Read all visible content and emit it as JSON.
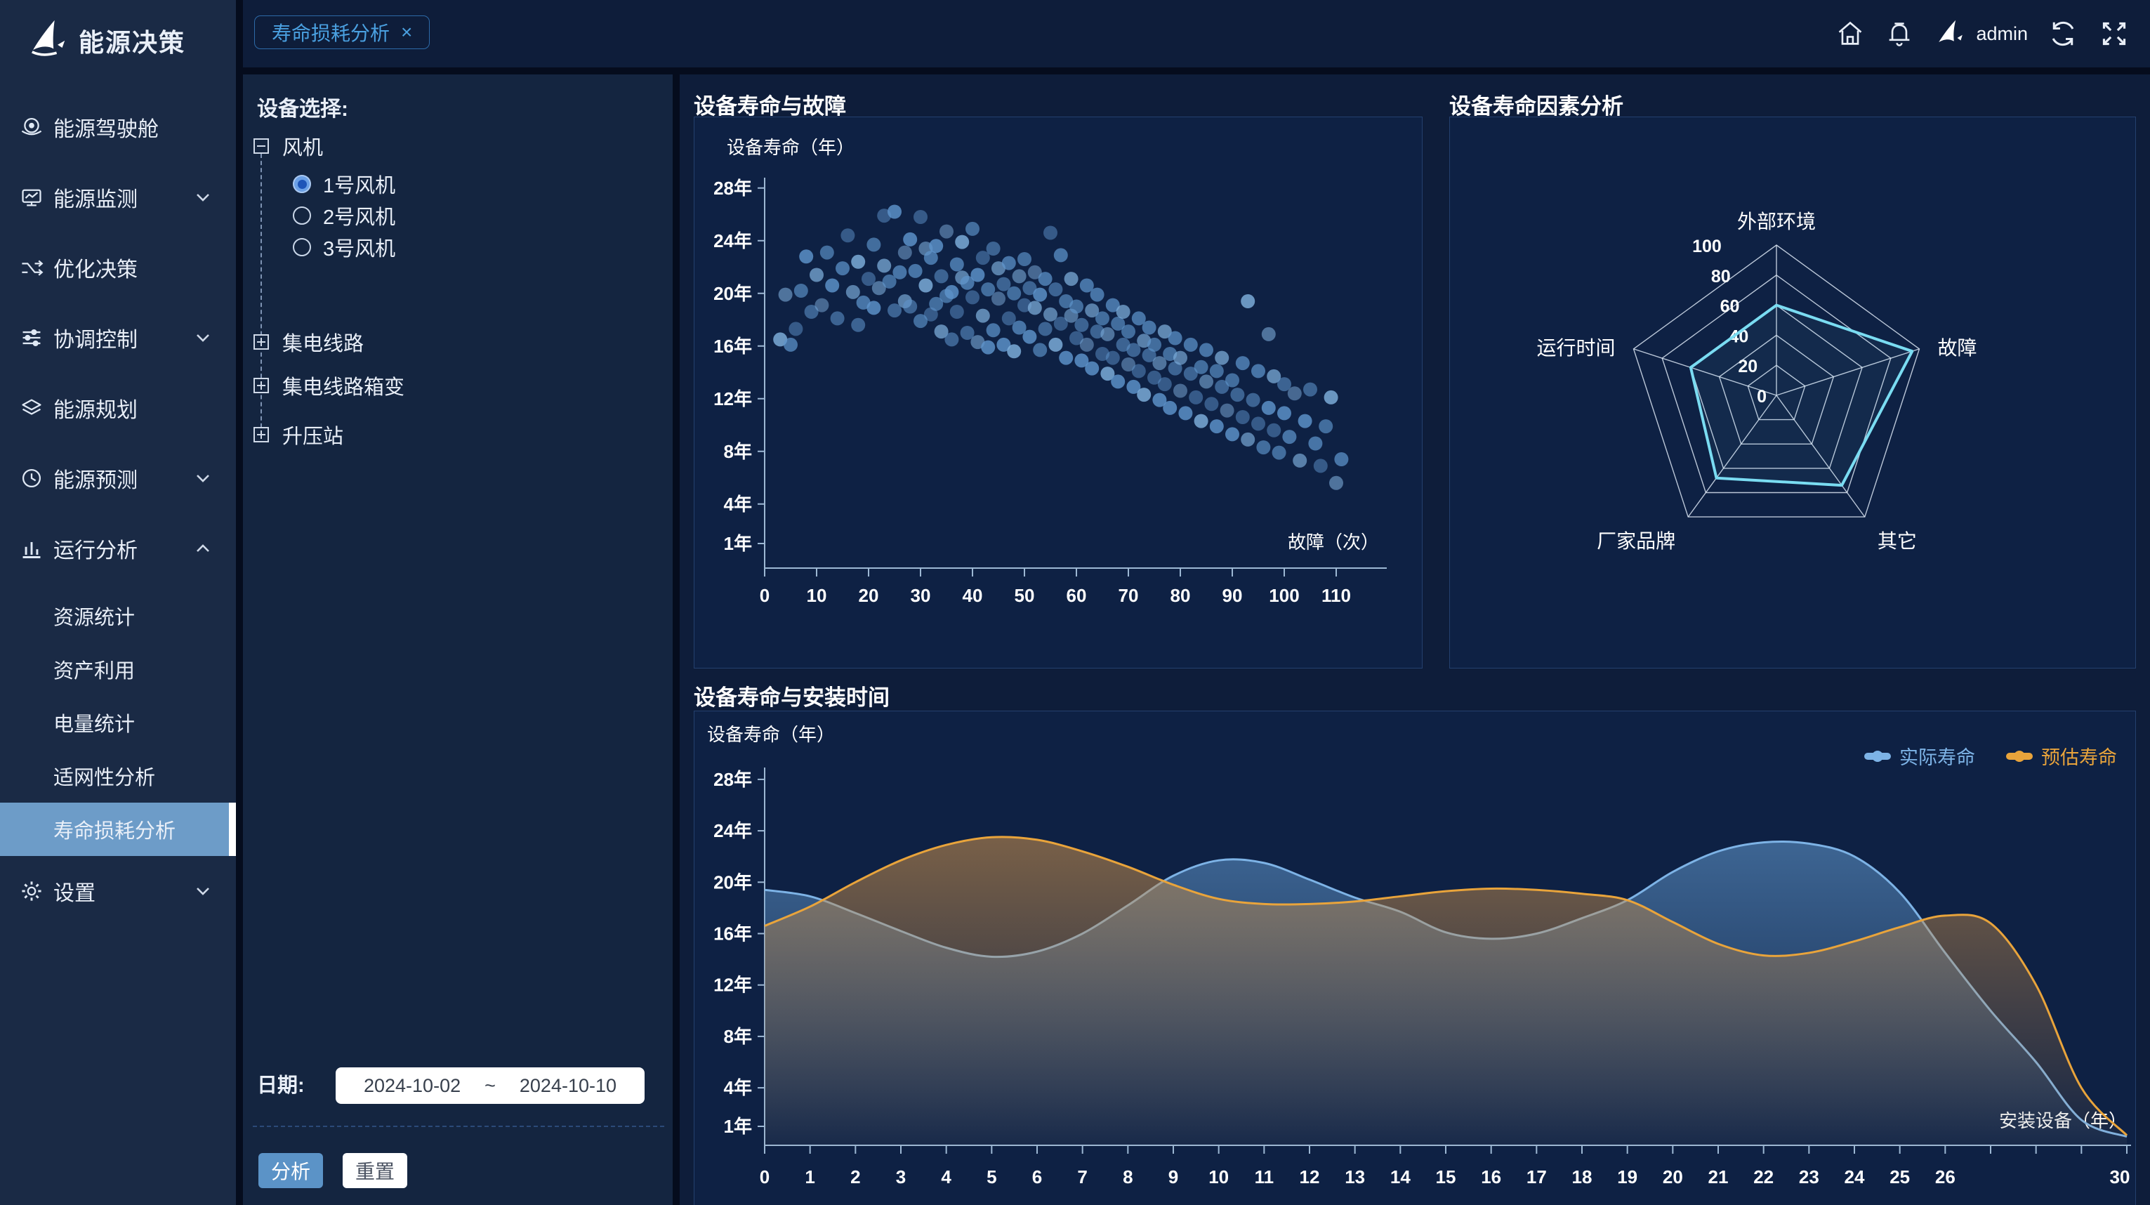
{
  "app_title": "能源决策",
  "topbar": {
    "tab_label": "寿命损耗分析",
    "tab_close": "×",
    "username": "admin",
    "icons": [
      "home-icon",
      "bell-icon",
      "brand-avatar-icon",
      "refresh-icon",
      "fullscreen-icon"
    ]
  },
  "sidebar": {
    "logo_icon": "sail-logo-icon",
    "logo_text": "能源决策",
    "items": [
      {
        "id": "cockpit",
        "label": "能源驾驶舱",
        "icon": "cockpit-icon",
        "chevron": null
      },
      {
        "id": "monitor",
        "label": "能源监测",
        "icon": "monitor-icon",
        "chevron": "down"
      },
      {
        "id": "optimize",
        "label": "优化决策",
        "icon": "decision-icon",
        "chevron": null
      },
      {
        "id": "control",
        "label": "协调控制",
        "icon": "sliders-icon",
        "chevron": "down"
      },
      {
        "id": "planning",
        "label": "能源规划",
        "icon": "layers-icon",
        "chevron": null
      },
      {
        "id": "forecast",
        "label": "能源预测",
        "icon": "clock-icon",
        "chevron": "down"
      },
      {
        "id": "analysis",
        "label": "运行分析",
        "icon": "barchart-icon",
        "chevron": "up",
        "expanded": true,
        "children": [
          {
            "id": "resource-stats",
            "label": "资源统计",
            "active": false
          },
          {
            "id": "asset-usage",
            "label": "资产利用",
            "active": false
          },
          {
            "id": "power-stats",
            "label": "电量统计",
            "active": false
          },
          {
            "id": "grid-fit",
            "label": "适网性分析",
            "active": false
          },
          {
            "id": "life-loss",
            "label": "寿命损耗分析",
            "active": true
          }
        ]
      },
      {
        "id": "settings",
        "label": "设置",
        "icon": "gear-icon",
        "chevron": "down"
      }
    ]
  },
  "device_panel": {
    "title": "设备选择:",
    "tree": [
      {
        "id": "fan",
        "label": "风机",
        "expander": "minus",
        "options": [
          {
            "label": "1号风机",
            "selected": true
          },
          {
            "label": "2号风机",
            "selected": false
          },
          {
            "label": "3号风机",
            "selected": false
          }
        ]
      },
      {
        "id": "collector-line",
        "label": "集电线路",
        "expander": "plus"
      },
      {
        "id": "collector-box",
        "label": "集电线路箱变",
        "expander": "plus"
      },
      {
        "id": "booster-station",
        "label": "升压站",
        "expander": "plus"
      }
    ],
    "date_label": "日期:",
    "date_start": "2024-10-02",
    "date_separator": "~",
    "date_end": "2024-10-10",
    "analyze_label": "分析",
    "reset_label": "重置"
  },
  "colors": {
    "accent_blue": "#4aa0e0",
    "active_item_bg": "#6d9cc8",
    "axis_line": "#9db8d4",
    "scatter_point": "#5e94cc",
    "scatter_point_light": "#7fb0dd",
    "radar_line": "#7adcf2",
    "series_actual": "#7db3e6",
    "series_estimate": "#e9a43b"
  },
  "chart_data": [
    {
      "type": "scatter",
      "title": "设备寿命与故障",
      "ylabel": "设备寿命（年）",
      "xlabel": "故障（次）",
      "y_tick_labels": [
        "1年",
        "4年",
        "8年",
        "12年",
        "16年",
        "20年",
        "24年",
        "28年"
      ],
      "y_tick_values": [
        1,
        4,
        8,
        12,
        16,
        20,
        24,
        28
      ],
      "x_ticks": [
        0,
        10,
        20,
        30,
        40,
        50,
        60,
        70,
        80,
        90,
        100,
        110
      ],
      "xlim": [
        0,
        120
      ],
      "ylim": [
        0,
        29.5
      ],
      "grid": false,
      "points": [
        [
          3,
          16.5
        ],
        [
          4,
          19.9
        ],
        [
          5,
          16.1
        ],
        [
          6,
          17.3
        ],
        [
          7,
          20.2
        ],
        [
          8,
          22.8
        ],
        [
          9,
          18.6
        ],
        [
          10,
          21.4
        ],
        [
          11,
          19.1
        ],
        [
          12,
          23.1
        ],
        [
          13,
          20.6
        ],
        [
          14,
          18.1
        ],
        [
          15,
          21.9
        ],
        [
          16,
          24.4
        ],
        [
          17,
          20.1
        ],
        [
          18,
          22.4
        ],
        [
          18,
          17.6
        ],
        [
          19,
          19.3
        ],
        [
          20,
          21.1
        ],
        [
          21,
          23.7
        ],
        [
          21,
          18.9
        ],
        [
          22,
          20.4
        ],
        [
          23,
          22.1
        ],
        [
          23,
          25.9
        ],
        [
          24,
          20.9
        ],
        [
          25,
          26.2
        ],
        [
          25,
          18.7
        ],
        [
          26,
          21.6
        ],
        [
          27,
          23.1
        ],
        [
          27,
          19.4
        ],
        [
          28,
          24.1
        ],
        [
          28,
          19.0
        ],
        [
          29,
          21.7
        ],
        [
          30,
          25.8
        ],
        [
          30,
          17.9
        ],
        [
          31,
          20.6
        ],
        [
          31,
          23.4
        ],
        [
          32,
          22.7
        ],
        [
          32,
          18.4
        ],
        [
          33,
          19.2
        ],
        [
          33,
          23.6
        ],
        [
          34,
          21.3
        ],
        [
          34,
          17.1
        ],
        [
          35,
          24.7
        ],
        [
          35,
          19.8
        ],
        [
          36,
          20.1
        ],
        [
          36,
          16.5
        ],
        [
          37,
          22.2
        ],
        [
          37,
          18.6
        ],
        [
          38,
          21.2
        ],
        [
          38,
          23.9
        ],
        [
          39,
          17.0
        ],
        [
          39,
          20.8
        ],
        [
          40,
          19.7
        ],
        [
          40,
          24.9
        ],
        [
          41,
          21.4
        ],
        [
          41,
          16.3
        ],
        [
          42,
          18.3
        ],
        [
          42,
          22.7
        ],
        [
          43,
          20.3
        ],
        [
          43,
          15.9
        ],
        [
          44,
          23.4
        ],
        [
          44,
          17.2
        ],
        [
          45,
          19.6
        ],
        [
          45,
          21.9
        ],
        [
          46,
          16.1
        ],
        [
          46,
          20.7
        ],
        [
          47,
          22.3
        ],
        [
          47,
          18.1
        ],
        [
          48,
          20.0
        ],
        [
          48,
          15.6
        ],
        [
          49,
          21.3
        ],
        [
          49,
          17.4
        ],
        [
          50,
          19.1
        ],
        [
          50,
          22.6
        ],
        [
          51,
          16.7
        ],
        [
          51,
          20.4
        ],
        [
          52,
          18.9
        ],
        [
          52,
          21.6
        ],
        [
          53,
          15.7
        ],
        [
          53,
          19.9
        ],
        [
          54,
          17.3
        ],
        [
          54,
          21.1
        ],
        [
          55,
          24.6
        ],
        [
          55,
          18.4
        ],
        [
          56,
          16.1
        ],
        [
          56,
          20.3
        ],
        [
          57,
          22.9
        ],
        [
          57,
          17.7
        ],
        [
          58,
          19.4
        ],
        [
          58,
          15.1
        ],
        [
          59,
          18.3
        ],
        [
          59,
          21.1
        ],
        [
          60,
          16.6
        ],
        [
          60,
          19.0
        ],
        [
          61,
          14.9
        ],
        [
          61,
          17.6
        ],
        [
          62,
          20.6
        ],
        [
          62,
          16.1
        ],
        [
          63,
          18.7
        ],
        [
          63,
          14.3
        ],
        [
          64,
          17.1
        ],
        [
          64,
          19.9
        ],
        [
          65,
          15.4
        ],
        [
          65,
          18.1
        ],
        [
          66,
          13.9
        ],
        [
          66,
          16.9
        ],
        [
          67,
          19.1
        ],
        [
          67,
          15.1
        ],
        [
          68,
          17.7
        ],
        [
          68,
          13.3
        ],
        [
          69,
          16.1
        ],
        [
          69,
          18.6
        ],
        [
          70,
          14.6
        ],
        [
          70,
          17.1
        ],
        [
          71,
          12.9
        ],
        [
          71,
          15.7
        ],
        [
          72,
          18.1
        ],
        [
          72,
          14.1
        ],
        [
          73,
          16.4
        ],
        [
          73,
          12.3
        ],
        [
          74,
          15.3
        ],
        [
          74,
          17.4
        ],
        [
          75,
          13.6
        ],
        [
          75,
          16.1
        ],
        [
          76,
          11.9
        ],
        [
          76,
          14.7
        ],
        [
          77,
          17.1
        ],
        [
          77,
          13.1
        ],
        [
          78,
          15.4
        ],
        [
          78,
          11.3
        ],
        [
          79,
          14.3
        ],
        [
          79,
          16.6
        ],
        [
          80,
          12.6
        ],
        [
          80,
          15.1
        ],
        [
          81,
          10.9
        ],
        [
          82,
          13.9
        ],
        [
          82,
          16.1
        ],
        [
          83,
          12.1
        ],
        [
          84,
          14.4
        ],
        [
          84,
          10.3
        ],
        [
          85,
          13.3
        ],
        [
          85,
          15.7
        ],
        [
          86,
          11.6
        ],
        [
          87,
          14.1
        ],
        [
          87,
          9.9
        ],
        [
          88,
          12.9
        ],
        [
          88,
          15.1
        ],
        [
          89,
          11.1
        ],
        [
          90,
          13.4
        ],
        [
          90,
          9.3
        ],
        [
          91,
          12.3
        ],
        [
          92,
          14.7
        ],
        [
          92,
          10.6
        ],
        [
          93,
          8.9
        ],
        [
          93,
          19.4
        ],
        [
          94,
          11.9
        ],
        [
          95,
          14.1
        ],
        [
          95,
          10.1
        ],
        [
          96,
          8.3
        ],
        [
          97,
          11.3
        ],
        [
          97,
          16.9
        ],
        [
          98,
          13.7
        ],
        [
          98,
          9.6
        ],
        [
          99,
          7.9
        ],
        [
          100,
          10.9
        ],
        [
          100,
          13.1
        ],
        [
          101,
          9.1
        ],
        [
          102,
          12.4
        ],
        [
          103,
          7.3
        ],
        [
          104,
          10.3
        ],
        [
          105,
          12.7
        ],
        [
          106,
          8.6
        ],
        [
          107,
          6.9
        ],
        [
          108,
          9.9
        ],
        [
          109,
          12.1
        ],
        [
          110,
          5.6
        ],
        [
          111,
          7.4
        ]
      ]
    },
    {
      "type": "radar",
      "title": "设备寿命因素分析",
      "axes": [
        "外部环境",
        "故障",
        "其它",
        "厂家品牌",
        "运行时间"
      ],
      "ring_labels": [
        0,
        20,
        40,
        60,
        80,
        100
      ],
      "max": 100,
      "values": [
        60,
        95,
        74,
        68,
        60
      ],
      "legend_position": "none"
    },
    {
      "type": "area",
      "title": "设备寿命与安装时间",
      "ylabel": "设备寿命（年）",
      "xlabel": "安装设备（年）",
      "y_tick_labels": [
        "1年",
        "4年",
        "8年",
        "12年",
        "16年",
        "20年",
        "24年",
        "28年"
      ],
      "y_tick_values": [
        1,
        4,
        8,
        12,
        16,
        20,
        24,
        28
      ],
      "x_labels": [
        0,
        1,
        2,
        3,
        4,
        5,
        6,
        7,
        8,
        9,
        10,
        11,
        12,
        13,
        14,
        15,
        16,
        17,
        18,
        19,
        20,
        21,
        22,
        23,
        24,
        25,
        26
      ],
      "x_end_label": 30,
      "x_max": 30,
      "legend_position": "top-right",
      "series": [
        {
          "name": "实际寿命",
          "color": "#7db3e6",
          "values": [
            19.4,
            18.9,
            17.6,
            16.2,
            14.9,
            14.2,
            14.6,
            16.0,
            18.2,
            20.5,
            21.7,
            21.5,
            20.2,
            18.8,
            17.7,
            16.1,
            15.6,
            16.0,
            17.2,
            18.6,
            20.8,
            22.4,
            23.1,
            23.0,
            22.0,
            19.2,
            14.5,
            10.0,
            6.0,
            1.5,
            0.2
          ]
        },
        {
          "name": "预估寿命",
          "color": "#e9a43b",
          "values": [
            16.6,
            18.1,
            20.0,
            21.7,
            22.9,
            23.5,
            23.3,
            22.4,
            21.2,
            19.8,
            18.7,
            18.3,
            18.3,
            18.5,
            18.9,
            19.3,
            19.5,
            19.4,
            19.1,
            18.6,
            16.9,
            15.2,
            14.3,
            14.5,
            15.4,
            16.5,
            17.4,
            16.8,
            12.0,
            4.0,
            0.3
          ]
        }
      ]
    }
  ]
}
